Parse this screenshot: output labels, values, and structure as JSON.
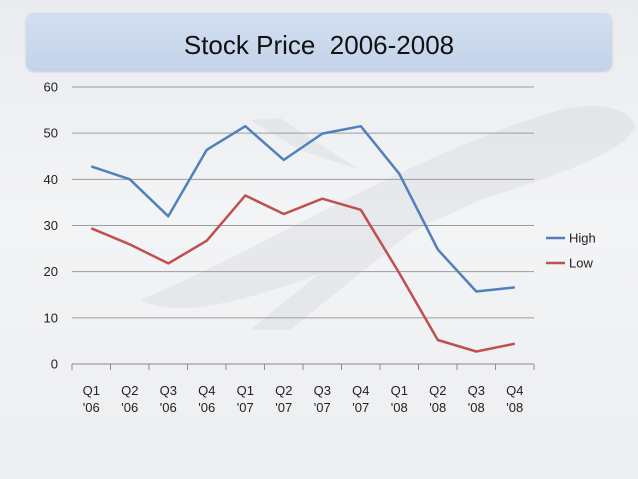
{
  "chart_data": {
    "type": "line",
    "title": "Stock Price  2006-2008",
    "categories": [
      [
        "Q1",
        "'06"
      ],
      [
        "Q2",
        "'06"
      ],
      [
        "Q3",
        "'06"
      ],
      [
        "Q4",
        "'06"
      ],
      [
        "Q1",
        "'07"
      ],
      [
        "Q2",
        "'07"
      ],
      [
        "Q3",
        "'07"
      ],
      [
        "Q4",
        "'07"
      ],
      [
        "Q1",
        "'08"
      ],
      [
        "Q2",
        "'08"
      ],
      [
        "Q3",
        "'08"
      ],
      [
        "Q4",
        "'08"
      ]
    ],
    "series": [
      {
        "name": "High",
        "color": "#4f81bd",
        "values": [
          42.8,
          40.0,
          32.0,
          46.4,
          51.5,
          44.2,
          49.9,
          51.5,
          41.2,
          24.8,
          15.7,
          16.6
        ]
      },
      {
        "name": "Low",
        "color": "#c0504d",
        "values": [
          29.4,
          25.9,
          21.8,
          26.7,
          36.5,
          32.5,
          35.8,
          33.4,
          19.7,
          5.2,
          2.7,
          4.4
        ]
      }
    ],
    "ylim": [
      0,
      60
    ],
    "yticks": [
      0,
      10,
      20,
      30,
      40,
      50,
      60
    ],
    "grid": true,
    "legend": "right",
    "xlabel": "",
    "ylabel": ""
  }
}
